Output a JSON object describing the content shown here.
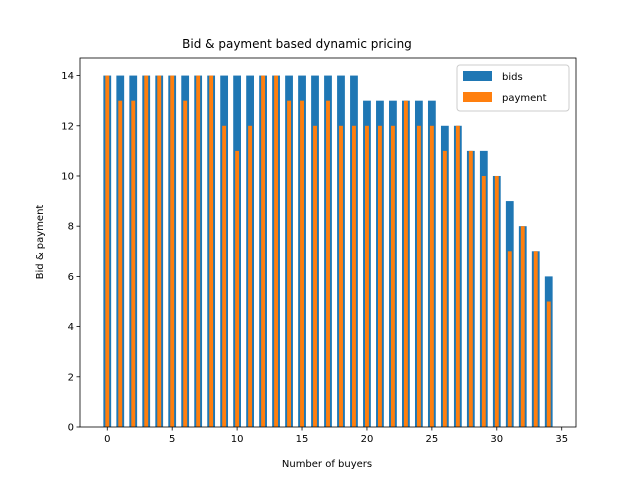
{
  "chart_data": {
    "type": "bar",
    "title": "Bid & payment based dynamic pricing",
    "xlabel": "Number of buyers",
    "ylabel": "Bid & payment",
    "xlim": [
      -2.1,
      36.1
    ],
    "ylim": [
      0,
      14.7
    ],
    "xticks": [
      0,
      5,
      10,
      15,
      20,
      25,
      30,
      35
    ],
    "yticks": [
      0,
      2,
      4,
      6,
      8,
      10,
      12,
      14
    ],
    "grid": false,
    "legend": "top-right",
    "x": [
      0,
      1,
      2,
      3,
      4,
      5,
      6,
      7,
      8,
      9,
      10,
      11,
      12,
      13,
      14,
      15,
      16,
      17,
      18,
      19,
      20,
      21,
      22,
      23,
      24,
      25,
      26,
      27,
      28,
      29,
      30,
      31,
      32,
      33,
      34
    ],
    "series": [
      {
        "name": "bids",
        "color": "#1f77b4",
        "values": [
          14,
          14,
          14,
          14,
          14,
          14,
          14,
          14,
          14,
          14,
          14,
          14,
          14,
          14,
          14,
          14,
          14,
          14,
          14,
          14,
          13,
          13,
          13,
          13,
          13,
          13,
          12,
          12,
          11,
          11,
          10,
          9,
          8,
          7,
          6
        ]
      },
      {
        "name": "payment",
        "color": "#ff7f0e",
        "values": [
          14,
          13,
          13,
          14,
          14,
          14,
          13,
          14,
          14,
          12,
          11,
          12,
          14,
          14,
          13,
          13,
          12,
          13,
          12,
          12,
          12,
          12,
          12,
          13,
          12,
          12,
          11,
          12,
          11,
          10,
          10,
          7,
          8,
          7,
          5
        ]
      }
    ]
  }
}
